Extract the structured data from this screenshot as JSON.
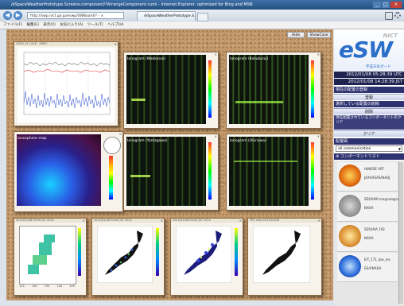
{
  "window": {
    "title": "/eSpaceWeatherPrototype.Screens.component/?ArrangeComponent.cuml - Internet Explorer, optimized for Bing and MSN",
    "url": "http://swp.nict.go.jp/eswp/SWBoard/? - ×",
    "tab_label": "/eSpaceWeatherPrototype.S...",
    "back_icon": "◀",
    "forward_icon": "▶"
  },
  "menu": [
    "ファイル(F)",
    "編集(E)",
    "表示(V)",
    "お気に入り(A)",
    "ツール(T)",
    "ヘルプ(H)"
  ],
  "toolbar": {
    "hide_label": "Hide",
    "showcase_label": "ShowCase"
  },
  "panels": {
    "p1": {
      "title": "GOES-15 / ACE · SWPC"
    },
    "p2": {
      "title": "Ionogram (Wakkanai)"
    },
    "p3": {
      "title": "Ionogram (Kokubunji)"
    },
    "p4": {
      "title": "Ionosphere map"
    },
    "p5": {
      "title": "Ionogram (Yamagawa)"
    },
    "p6": {
      "title": "Ionogram (Okinawa)"
    },
    "p7": {
      "title": "2012/01/08 05:00 JST 2012"
    },
    "p8": {
      "title": "2012/01/08 05:00 JST 2012"
    },
    "p9": {
      "title": "2012/01/08 05:00 JST 2012"
    },
    "p10": {
      "title": "TEC map 2012/01/08"
    }
  },
  "map_ticks": [
    "125",
    "130",
    "135",
    "140",
    "145"
  ],
  "sidebar": {
    "logo_word": "eSW",
    "logo_badge": "NICT",
    "logo_sub": "宇宙天気ボード",
    "time_utc": "2012/01/08 05:28:39 UTC",
    "time_jst": "2012/01/08 14:28:39 JST",
    "save_heading": "現在の配置の登録",
    "register_button": "登録",
    "delete_heading": "選択している配置の削除",
    "delete_button": "削除",
    "clear_heading": "現在配置されているコンポーネントのクリア",
    "clear_button": "クリア",
    "layout_heading": "配置図",
    "layout_select": "all communication",
    "list_heading": "コンポーネントリスト",
    "components": [
      {
        "name": "HINODE XRT",
        "source": "JAXA/ISAS/NAOJ",
        "color": "sun-orange"
      },
      {
        "name": "SDO/HMI magnetogram",
        "source": "NASA",
        "color": "sun-grey"
      },
      {
        "name": "SDO/AIA 193",
        "source": "NASA",
        "color": "sun-gold"
      },
      {
        "name": "EIT_171_low_res",
        "source": "ESA/NASA",
        "color": "sun-blue"
      }
    ]
  },
  "colors": {
    "cork": "#c49a6c",
    "sidebar_dark": "#1f2350",
    "accent": "#2b6fc9",
    "ionogram_trace": "#7cdc3c"
  }
}
